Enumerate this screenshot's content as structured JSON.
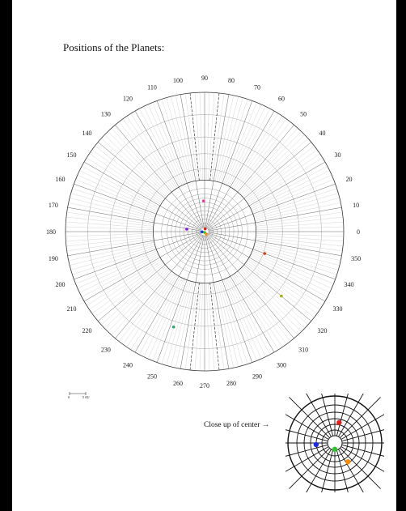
{
  "title": "Positions of the Planets:",
  "angle_labels": [
    "0",
    "10",
    "20",
    "30",
    "40",
    "50",
    "60",
    "70",
    "80",
    "90",
    "100",
    "110",
    "120",
    "130",
    "140",
    "150",
    "160",
    "170",
    "180",
    "190",
    "200",
    "210",
    "220",
    "230",
    "240",
    "250",
    "260",
    "270",
    "280",
    "290",
    "300",
    "310",
    "320",
    "330",
    "340",
    "350"
  ],
  "scale_bar": {
    "left_label": "0",
    "right_label": "5 AU"
  },
  "closeup_label": "Close up of center →",
  "planets": [
    {
      "color": "#e0201a",
      "angle_deg": 78,
      "radius_frac": 0.02
    },
    {
      "color": "#1a2be0",
      "angle_deg": 185,
      "radius_frac": 0.018
    },
    {
      "color": "#2cc52c",
      "angle_deg": 270,
      "radius_frac": 0.006
    },
    {
      "color": "#ff8a00",
      "angle_deg": 305,
      "radius_frac": 0.022
    },
    {
      "color": "#8a1ae0",
      "angle_deg": 172,
      "radius_frac": 0.13
    },
    {
      "color": "#e23aa6",
      "angle_deg": 92,
      "radius_frac": 0.22
    },
    {
      "color": "#d0451b",
      "angle_deg": 340,
      "radius_frac": 0.46
    },
    {
      "color": "#a8b21a",
      "angle_deg": 320,
      "radius_frac": 0.72
    },
    {
      "color": "#2aa86a",
      "angle_deg": 252,
      "radius_frac": 0.72
    }
  ]
}
